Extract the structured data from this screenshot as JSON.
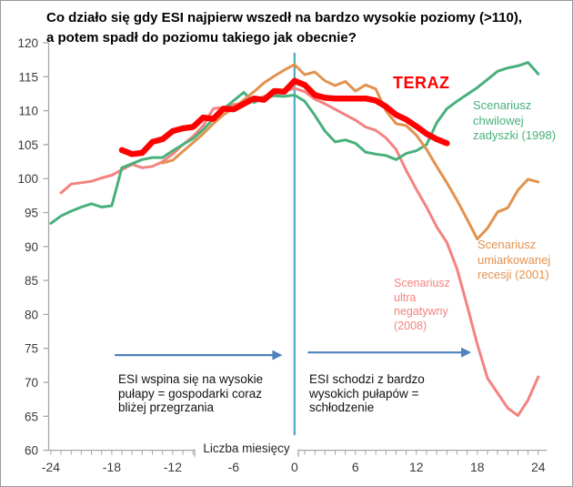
{
  "title": {
    "text": "Co działo się gdy ESI najpierw wszedł na bardzo wysokie poziomy (>110),\na potem spadł do poziomu takiego jak obecnie?"
  },
  "labels": {
    "teraz": "TERAZ",
    "scenario_green": "Scenariusz\nchwilowej\nzadyszki (1998)",
    "scenario_orange": "Scenariusz\numiarkowanej\nrecesji (2001)",
    "scenario_pink": "Scenariusz\nultra\nnegatywny\n(2008)",
    "note_left": "ESI wspina się na wysokie\npułapy = gospodarki coraz\nbliżej przegrzania",
    "note_right": "ESI schodzi z bardzo\nwysokich pułapów =\nschłodzenie"
  },
  "colors": {
    "teraz": "#ff0000",
    "green": "#49b07c",
    "orange": "#e2924f",
    "pink": "#f48280",
    "vline": "#4bacc6",
    "arrow": "#4f81bd",
    "axis": "#a6a6a6",
    "tick_text": "#3a3a3a"
  },
  "chart_data": {
    "type": "line",
    "title": "Co działo się gdy ESI najpierw wszedł na bardzo wysokie poziomy (>110), a potem spadł do poziomu takiego jak obecnie?",
    "xlabel": "Liczba miesięcy",
    "ylabel": "",
    "xlim": [
      -24,
      24
    ],
    "ylim": [
      60,
      120
    ],
    "grid": false,
    "x_tick_labels": [
      -24,
      -18,
      -12,
      -6,
      0,
      6,
      12,
      18,
      24
    ],
    "y_tick_labels": [
      60,
      65,
      70,
      75,
      80,
      85,
      90,
      95,
      100,
      105,
      110,
      115,
      120
    ],
    "x_minor_tick_step": 1,
    "vertical_reference_line_x": 0,
    "arrows": [
      {
        "x1": -17.7,
        "x2": -1.2,
        "y": 74.0
      },
      {
        "x1": 1.3,
        "x2": 17.4,
        "y": 74.4
      }
    ],
    "series": [
      {
        "id": "pink-2008",
        "name": "Scenariusz ultra negatywny (2008)",
        "color": "#f48280",
        "width": 3,
        "x": [
          -23,
          -22,
          -21,
          -20,
          -19,
          -18,
          -17,
          -16,
          -15,
          -14,
          -13,
          -12,
          -11,
          -10,
          -9,
          -8,
          -7,
          -6,
          -5,
          -4,
          -3,
          -2,
          -1,
          0,
          1,
          2,
          3,
          4,
          5,
          6,
          7,
          8,
          9,
          10,
          11,
          12,
          13,
          14,
          15,
          16,
          17,
          18,
          19,
          20,
          21,
          22,
          23,
          24
        ],
        "y": [
          97.9,
          99.2,
          99.4,
          99.6,
          100.1,
          100.5,
          101.3,
          102.1,
          101.6,
          101.8,
          102.5,
          103.6,
          105.0,
          106.2,
          107.8,
          110.3,
          110.5,
          110.9,
          111.1,
          111.5,
          112.1,
          112.5,
          112.9,
          113.3,
          112.8,
          111.7,
          111.0,
          110.2,
          109.4,
          108.6,
          107.6,
          107.1,
          106.0,
          104.3,
          101.2,
          98.4,
          95.8,
          92.9,
          90.6,
          86.7,
          81.3,
          75.6,
          70.6,
          68.4,
          66.2,
          65.1,
          67.4,
          70.8
        ]
      },
      {
        "id": "green-1998",
        "name": "Scenariusz chwilowej zadyszki (1998)",
        "color": "#49b07c",
        "width": 3,
        "x": [
          -24,
          -23,
          -22,
          -21,
          -20,
          -19,
          -18,
          -17,
          -16,
          -15,
          -14,
          -13,
          -12,
          -11,
          -10,
          -9,
          -8,
          -7,
          -6,
          -5,
          -4,
          -3,
          -2,
          -1,
          0,
          1,
          2,
          3,
          4,
          5,
          6,
          7,
          8,
          9,
          10,
          11,
          12,
          13,
          14,
          15,
          16,
          17,
          18,
          19,
          20,
          21,
          22,
          23,
          24
        ],
        "y": [
          93.4,
          94.5,
          95.2,
          95.8,
          96.3,
          95.8,
          96.0,
          101.6,
          102.2,
          102.8,
          103.1,
          103.1,
          104.1,
          105.0,
          105.9,
          107.2,
          108.8,
          110.2,
          111.5,
          112.7,
          111.2,
          111.9,
          112.2,
          112.1,
          112.3,
          111.4,
          109.3,
          107.0,
          105.4,
          105.7,
          105.2,
          103.9,
          103.6,
          103.4,
          102.8,
          103.7,
          104.1,
          105.0,
          108.2,
          110.3,
          111.4,
          112.4,
          113.4,
          114.6,
          115.8,
          116.3,
          116.6,
          117.1,
          115.4
        ]
      },
      {
        "id": "orange-2001",
        "name": "Scenariusz umiarkowanej recesji (2001)",
        "color": "#e2924f",
        "width": 3,
        "x": [
          -13,
          -12,
          -11,
          -10,
          -9,
          -8,
          -7,
          -6,
          -5,
          -4,
          -3,
          -2,
          -1,
          0,
          1,
          2,
          3,
          4,
          5,
          6,
          7,
          8,
          9,
          10,
          11,
          12,
          13,
          14,
          15,
          16,
          17,
          18,
          19,
          20,
          21,
          22,
          23,
          24
        ],
        "y": [
          102.3,
          102.7,
          104.0,
          105.3,
          106.6,
          108.1,
          109.4,
          110.4,
          111.6,
          112.8,
          114.1,
          115.1,
          116.0,
          116.8,
          115.3,
          115.7,
          114.4,
          113.7,
          114.3,
          112.9,
          113.8,
          113.2,
          110.0,
          108.1,
          107.8,
          106.4,
          104.3,
          101.8,
          99.4,
          96.8,
          94.0,
          91.1,
          92.7,
          95.1,
          95.7,
          98.3,
          99.9,
          99.5
        ]
      },
      {
        "id": "teraz",
        "name": "TERAZ",
        "color": "#ff0000",
        "width": 6.5,
        "x": [
          -17,
          -16,
          -15,
          -14,
          -13,
          -12,
          -11,
          -10,
          -9,
          -8,
          -7,
          -6,
          -5,
          -4,
          -3,
          -2,
          -1,
          0,
          1,
          2,
          3,
          4,
          5,
          6,
          7,
          8,
          9,
          10,
          11,
          12,
          13,
          14,
          15
        ],
        "y": [
          104.2,
          103.6,
          103.8,
          105.4,
          105.8,
          107.0,
          107.4,
          107.6,
          109.0,
          108.8,
          110.3,
          110.2,
          111.0,
          111.8,
          111.6,
          112.9,
          112.8,
          114.4,
          113.8,
          112.3,
          111.9,
          111.8,
          111.8,
          111.8,
          111.8,
          111.5,
          110.6,
          109.4,
          108.7,
          107.7,
          106.6,
          105.8,
          105.2
        ]
      }
    ]
  }
}
